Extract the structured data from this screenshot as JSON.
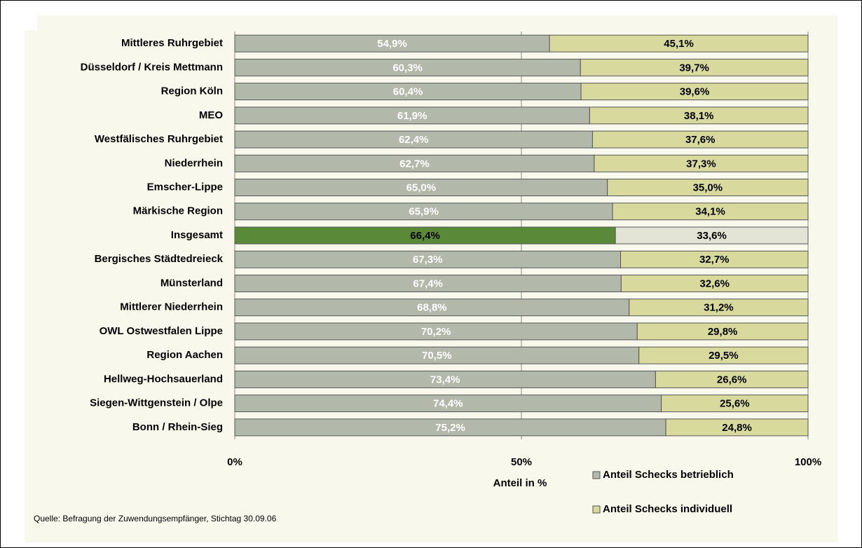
{
  "chart_data": {
    "type": "stacked_bar_horizontal",
    "categories": [
      "Mittleres Ruhrgebiet",
      "Düsseldorf  / Kreis Mettmann",
      "Region Köln",
      "MEO",
      "Westfälisches Ruhrgebiet",
      "Niederrhein",
      "Emscher-Lippe",
      "Märkische Region",
      "Insgesamt",
      "Bergisches Städtedreieck",
      "Münsterland",
      "Mittlerer Niederrhein",
      "OWL Ostwestfalen Lippe",
      "Region Aachen",
      "Hellweg-Hochsauerland",
      "Siegen-Wittgenstein / Olpe",
      "Bonn / Rhein-Sieg"
    ],
    "series": [
      {
        "name": "Anteil Schecks betrieblich",
        "color": "#b2b9ab",
        "values": [
          54.9,
          60.3,
          60.4,
          61.9,
          62.4,
          62.7,
          65.0,
          65.9,
          66.4,
          67.3,
          67.4,
          68.8,
          70.2,
          70.5,
          73.4,
          74.4,
          75.2
        ],
        "value_labels": [
          "54,9%",
          "60,3%",
          "60,4%",
          "61,9%",
          "62,4%",
          "62,7%",
          "65,0%",
          "65,9%",
          "66,4%",
          "67,3%",
          "67,4%",
          "68,8%",
          "70,2%",
          "70,5%",
          "73,4%",
          "74,4%",
          "75,2%"
        ],
        "colors": [
          "#b2b9ab",
          "#b2b9ab",
          "#b2b9ab",
          "#b2b9ab",
          "#b2b9ab",
          "#b2b9ab",
          "#b2b9ab",
          "#b2b9ab",
          "#5a8a38",
          "#b2b9ab",
          "#b2b9ab",
          "#b2b9ab",
          "#b2b9ab",
          "#b2b9ab",
          "#b2b9ab",
          "#b2b9ab",
          "#b2b9ab"
        ],
        "label_colors": [
          "#ffffff",
          "#ffffff",
          "#ffffff",
          "#ffffff",
          "#ffffff",
          "#ffffff",
          "#ffffff",
          "#ffffff",
          "#000000",
          "#ffffff",
          "#ffffff",
          "#ffffff",
          "#ffffff",
          "#ffffff",
          "#ffffff",
          "#ffffff",
          "#ffffff"
        ]
      },
      {
        "name": "Anteil Schecks individuell",
        "color": "#d8d99c",
        "values": [
          45.1,
          39.7,
          39.6,
          38.1,
          37.6,
          37.3,
          35.0,
          34.1,
          33.6,
          32.7,
          32.6,
          31.2,
          29.8,
          29.5,
          26.6,
          25.6,
          24.8
        ],
        "value_labels": [
          "45,1%",
          "39,7%",
          "39,6%",
          "38,1%",
          "37,6%",
          "37,3%",
          "35,0%",
          "34,1%",
          "33,6%",
          "32,7%",
          "32,6%",
          "31,2%",
          "29,8%",
          "29,5%",
          "26,6%",
          "25,6%",
          "24,8%"
        ],
        "colors": [
          "#d8d99c",
          "#d8d99c",
          "#d8d99c",
          "#d8d99c",
          "#d8d99c",
          "#d8d99c",
          "#d8d99c",
          "#d8d99c",
          "#e3e3d6",
          "#d8d99c",
          "#d8d99c",
          "#d8d99c",
          "#d8d99c",
          "#d8d99c",
          "#d8d99c",
          "#d8d99c",
          "#d8d99c"
        ],
        "label_colors": [
          "#000000",
          "#000000",
          "#000000",
          "#000000",
          "#000000",
          "#000000",
          "#000000",
          "#000000",
          "#000000",
          "#000000",
          "#000000",
          "#000000",
          "#000000",
          "#000000",
          "#000000",
          "#000000",
          "#000000"
        ]
      }
    ],
    "xlim": [
      0,
      100
    ],
    "xticks": [
      {
        "value": 0,
        "label": "0%"
      },
      {
        "value": 50,
        "label": "50%"
      },
      {
        "value": 100,
        "label": "100%"
      }
    ],
    "xlabel": "Anteil in %",
    "source": "Quelle: Befragung der Zuwendungsempfänger, Stichtag 30.09.06",
    "grid": true
  }
}
